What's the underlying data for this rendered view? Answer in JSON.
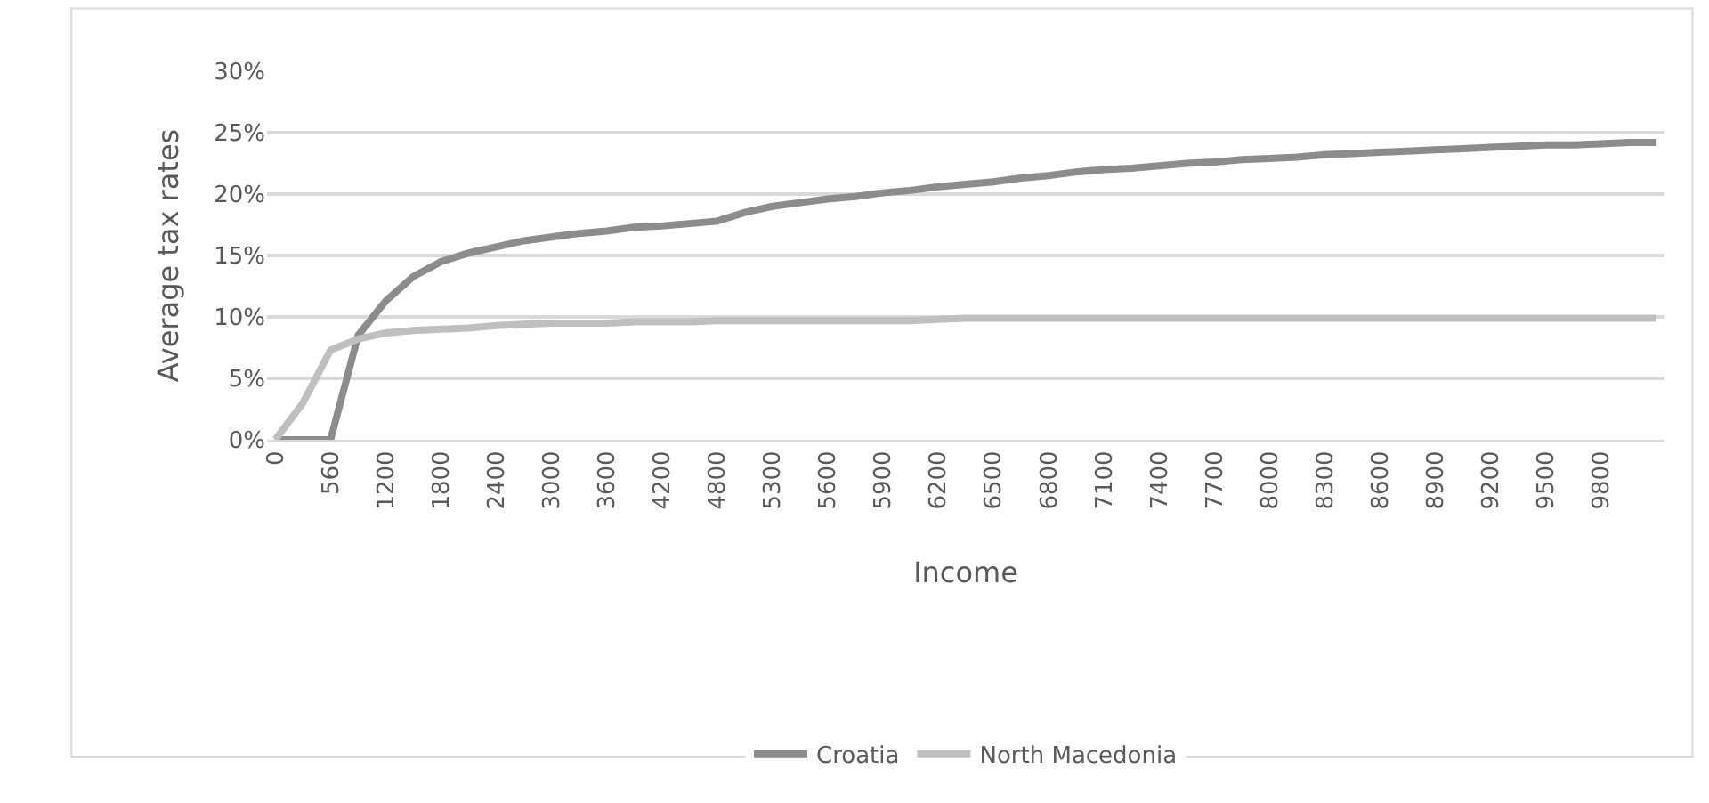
{
  "chart_data": {
    "type": "line",
    "xlabel": "Income",
    "ylabel": "Average tax rates",
    "categories": [
      "0",
      null,
      "560",
      null,
      "1200",
      null,
      "1800",
      null,
      "2400",
      null,
      "3000",
      null,
      "3600",
      null,
      "4200",
      null,
      "4800",
      null,
      "5300",
      null,
      "5600",
      null,
      "5900",
      null,
      "6200",
      null,
      "6500",
      null,
      "6800",
      null,
      "7100",
      null,
      "7400",
      null,
      "7700",
      null,
      "8000",
      null,
      "8300",
      null,
      "8600",
      null,
      "8900",
      null,
      "9200",
      null,
      "9500",
      null,
      "9800",
      null,
      null
    ],
    "series": [
      {
        "name": "Croatia",
        "color": "#8c8c8c",
        "values": [
          0,
          0,
          0,
          8.5,
          11.3,
          13.3,
          14.5,
          15.2,
          15.7,
          16.2,
          16.5,
          16.8,
          17.0,
          17.3,
          17.4,
          17.6,
          17.8,
          18.5,
          19.0,
          19.3,
          19.6,
          19.8,
          20.1,
          20.3,
          20.6,
          20.8,
          21.0,
          21.3,
          21.5,
          21.8,
          22.0,
          22.1,
          22.3,
          22.5,
          22.6,
          22.8,
          22.9,
          23.0,
          23.2,
          23.3,
          23.4,
          23.5,
          23.6,
          23.7,
          23.8,
          23.9,
          24.0,
          24.0,
          24.1,
          24.2,
          24.2
        ]
      },
      {
        "name": "North Macedonia",
        "color": "#bfbfbf",
        "values": [
          0,
          3,
          7.3,
          8.2,
          8.7,
          8.9,
          9.0,
          9.1,
          9.3,
          9.4,
          9.5,
          9.5,
          9.5,
          9.6,
          9.6,
          9.6,
          9.7,
          9.7,
          9.7,
          9.7,
          9.7,
          9.7,
          9.7,
          9.7,
          9.8,
          9.9,
          9.9,
          9.9,
          9.9,
          9.9,
          9.9,
          9.9,
          9.9,
          9.9,
          9.9,
          9.9,
          9.9,
          9.9,
          9.9,
          9.9,
          9.9,
          9.9,
          9.9,
          9.9,
          9.9,
          9.9,
          9.9,
          9.9,
          9.9,
          9.9,
          9.9
        ]
      }
    ],
    "ylim": [
      0,
      30
    ],
    "yticks": [
      {
        "value": 0,
        "label": "0%"
      },
      {
        "value": 5,
        "label": "5%"
      },
      {
        "value": 10,
        "label": "10%"
      },
      {
        "value": 15,
        "label": "15%"
      },
      {
        "value": 20,
        "label": "20%"
      },
      {
        "value": 25,
        "label": "25%"
      },
      {
        "value": 30,
        "label": "30%"
      }
    ],
    "grid": "y",
    "legend": "bottom",
    "marker": "none",
    "line_style": "solid"
  }
}
